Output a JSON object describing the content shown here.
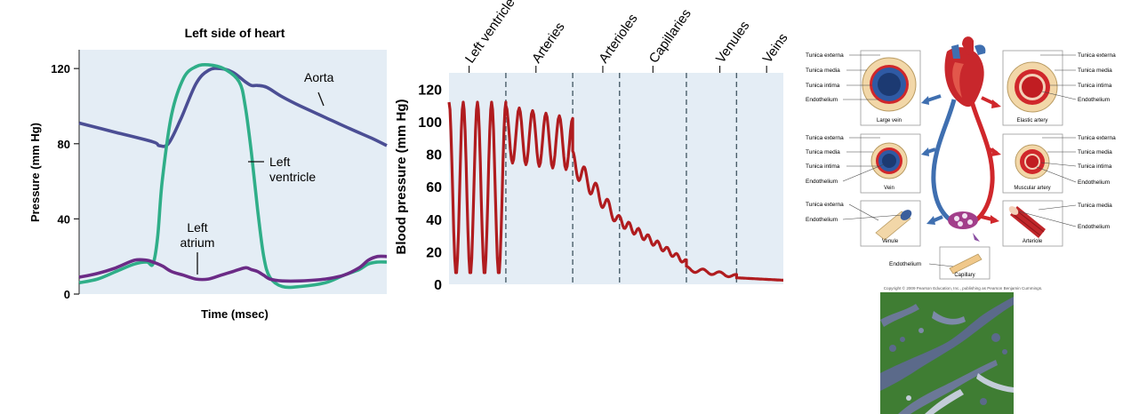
{
  "colors": {
    "panel_bg": "#e4edf5",
    "aorta": "#4b4e94",
    "ventricle": "#2fae88",
    "atrium": "#6b2b86",
    "bp_line": "#b01c1f",
    "divider": "#4a5e6a",
    "artery_red": "#d0272b",
    "vein_blue": "#3f6fb0",
    "vessel_wall": "#f2d7a8",
    "satellite_green": "#3f7d33",
    "satellite_water": "#5b6a8a"
  },
  "chart_data": [
    {
      "type": "line",
      "title": "Left side of heart",
      "xlabel": "Time (msec)",
      "ylabel": "Pressure (mm Hg)",
      "ylim": [
        0,
        130
      ],
      "yticks": [
        "0",
        "40",
        "80",
        "120"
      ],
      "x_range": [
        0,
        100
      ],
      "series": [
        {
          "name": "Aorta",
          "label": "Aorta",
          "x": [
            0,
            12,
            24,
            26,
            29,
            33,
            38,
            42,
            46,
            50,
            54,
            56,
            58,
            61,
            66,
            72,
            80,
            88,
            95,
            100
          ],
          "y": [
            91,
            86,
            81,
            79,
            80,
            93,
            112,
            119,
            120,
            118,
            113,
            111,
            111,
            110,
            105,
            100,
            94,
            88,
            83,
            79
          ]
        },
        {
          "name": "Left ventricle",
          "label": [
            "Left",
            "ventricle"
          ],
          "x": [
            0,
            6,
            12,
            18,
            22,
            24,
            25.5,
            27,
            30,
            34,
            38,
            42,
            47,
            52,
            54,
            56,
            58,
            60,
            62,
            66,
            72,
            80,
            86,
            91,
            94,
            97,
            100
          ],
          "y": [
            6,
            8,
            12,
            16,
            17,
            16,
            30,
            60,
            95,
            115,
            121,
            122,
            120,
            113,
            100,
            75,
            45,
            20,
            9,
            4,
            4,
            6,
            10,
            13,
            16,
            17,
            17
          ]
        },
        {
          "name": "Left atrium",
          "label": [
            "Left",
            "atrium"
          ],
          "x": [
            0,
            6,
            12,
            18,
            22,
            24,
            27,
            30,
            34,
            38,
            42,
            46,
            50,
            54,
            56,
            58,
            60,
            62,
            66,
            72,
            80,
            86,
            91,
            94,
            97,
            100
          ],
          "y": [
            9,
            11,
            14,
            18,
            18,
            17,
            15,
            12,
            10,
            8,
            8,
            10,
            12,
            14,
            13,
            12,
            10,
            8,
            7,
            7,
            8,
            10,
            14,
            18,
            20,
            20
          ]
        }
      ]
    },
    {
      "type": "line",
      "title": "",
      "xlabel": "",
      "ylabel": "Blood pressure (mm Hg)",
      "ylim": [
        0,
        130
      ],
      "yticks": [
        "0",
        "20",
        "40",
        "60",
        "80",
        "100",
        "120"
      ],
      "x_range": [
        0,
        100
      ],
      "categories": [
        "Left ventricle",
        "Arteries",
        "Arterioles",
        "Capillaries",
        "Venules",
        "Veins"
      ],
      "category_x": [
        6,
        26,
        46,
        61,
        81,
        95
      ],
      "dividers_x": [
        17,
        37,
        51,
        71,
        86
      ],
      "series": [
        {
          "name": "Blood pressure",
          "segments": [
            {
              "x0": 0,
              "x1": 17,
              "cycles": 4,
              "min": 6,
              "max": 112,
              "min_end": 6,
              "max_end": 112
            },
            {
              "x0": 17,
              "x1": 37,
              "cycles": 5,
              "min": 75,
              "max": 110,
              "min_end": 70,
              "max_end": 102
            },
            {
              "x0": 37,
              "x1": 51,
              "cycles": 4,
              "min": 68,
              "max": 82,
              "min_end": 35,
              "max_end": 42
            },
            {
              "x0": 51,
              "x1": 71,
              "cycles": 7,
              "min": 36,
              "max": 42,
              "min_end": 12,
              "max_end": 15
            },
            {
              "x0": 71,
              "x1": 86,
              "cycles": 3,
              "min": 8,
              "max": 11,
              "min_end": 4,
              "max_end": 6
            },
            {
              "x0": 86,
              "x1": 100,
              "cycles": 0,
              "min": 4,
              "max": 4,
              "min_end": 2.5,
              "max_end": 2.5
            }
          ]
        }
      ]
    }
  ],
  "vessel_diagram": {
    "labels": {
      "tunica_externa": "Tunica externa",
      "tunica_media": "Tunica media",
      "tunica_intima": "Tunica intima",
      "endothelium": "Endothelium"
    },
    "vessels": {
      "large_vein": "Large vein",
      "elastic_artery": "Elastic artery",
      "vein": "Vein",
      "muscular_artery": "Muscular artery",
      "venule": "Venule",
      "arteriole": "Arteriole",
      "capillary": "Capillary"
    },
    "copyright": "Copyright © 2009 Pearson Education, Inc., publishing as Pearson Benjamin Cummings."
  }
}
